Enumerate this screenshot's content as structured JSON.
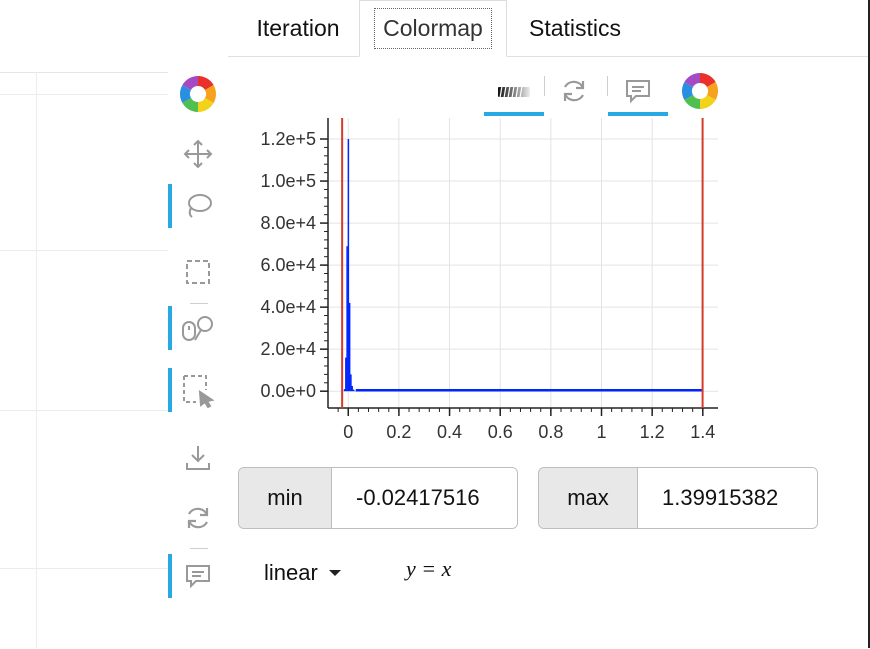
{
  "tabs": [
    {
      "label": "Iteration",
      "active": false
    },
    {
      "label": "Colormap",
      "active": true
    },
    {
      "label": "Statistics",
      "active": false
    }
  ],
  "vertical_toolbar": {
    "items": [
      "bokeh-logo-icon",
      "pan-icon",
      "lasso-select-icon",
      "box-select-icon",
      "wheel-zoom-icon",
      "box-zoom-icon",
      "save-icon",
      "reset-icon",
      "hover-icon"
    ],
    "active": [
      "lasso-select-icon",
      "wheel-zoom-icon",
      "box-zoom-icon",
      "hover-icon"
    ]
  },
  "histogram_toolbar": {
    "items": [
      "range-tool-icon",
      "reset-icon",
      "hover-icon",
      "bokeh-logo-icon"
    ],
    "active": [
      "range-tool-icon",
      "hover-icon"
    ]
  },
  "chart_data": {
    "type": "bar",
    "title": "",
    "xlabel": "",
    "ylabel": "",
    "xlim": [
      -0.08,
      1.46
    ],
    "ylim": [
      -8000,
      130000
    ],
    "xticks": [
      "0",
      "0.2",
      "0.4",
      "0.6",
      "0.8",
      "1",
      "1.2",
      "1.4"
    ],
    "yticks": [
      "0.0e+0",
      "2.0e+4",
      "4.0e+4",
      "6.0e+4",
      "8.0e+4",
      "1.0e+5",
      "1.2e+5"
    ],
    "x": [
      -0.015,
      -0.01,
      -0.005,
      0.0,
      0.005,
      0.01,
      0.015,
      0.02,
      0.025,
      0.03
    ],
    "values": [
      1000,
      16000,
      69000,
      120000,
      42000,
      8000,
      2500,
      800,
      300,
      100
    ],
    "baseline_range": [
      0.03,
      1.4
    ],
    "grid": true,
    "series_color": "#0026ff",
    "marker_color": "#d63a2b",
    "range_markers": [
      -0.0241751,
      1.3991538
    ]
  },
  "colormap": {
    "min_label": "min",
    "min_value": "-0.02417516",
    "max_label": "max",
    "max_value": "1.39915382",
    "scale": "linear",
    "formula": "y = x"
  }
}
